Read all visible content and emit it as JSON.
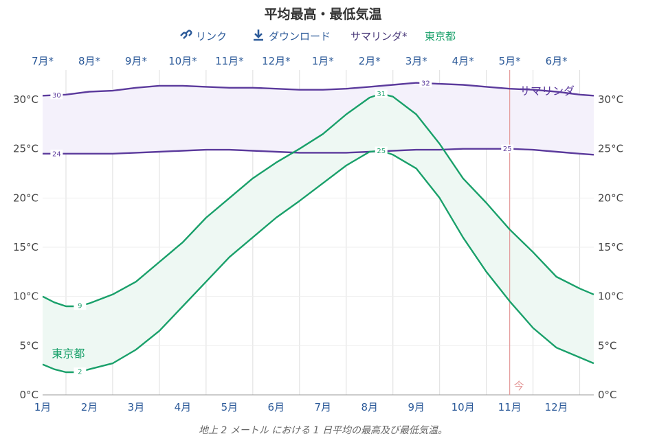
{
  "chart_data": {
    "type": "line",
    "title": "平均最高・最低気温",
    "caption": "地上 2 メートル における 1 日平均の最高及び最低気温。",
    "legend": {
      "link": "リンク",
      "download": "ダウンロード",
      "series_a": "サマリンダ*",
      "series_b": "東京都"
    },
    "top_axis_labels": [
      "7月*",
      "8月*",
      "9月*",
      "10月*",
      "11月*",
      "12月*",
      "1月*",
      "2月*",
      "3月*",
      "4月*",
      "5月*",
      "6月*"
    ],
    "bottom_axis_labels": [
      "1月",
      "2月",
      "3月",
      "4月",
      "5月",
      "6月",
      "7月",
      "8月",
      "9月",
      "10月",
      "11月",
      "12月"
    ],
    "y_ticks": [
      "0°C",
      "5°C",
      "10°C",
      "15°C",
      "20°C",
      "25°C",
      "30°C"
    ],
    "ylim": [
      0,
      33
    ],
    "xlim": [
      1,
      12.8
    ],
    "now_marker": {
      "label": "今",
      "x": 11.0
    },
    "series": [
      {
        "name": "サマリンダ",
        "kind": "high",
        "points": [
          [
            1,
            30.4
          ],
          [
            1.5,
            30.5
          ],
          [
            2,
            30.8
          ],
          [
            2.5,
            30.9
          ],
          [
            3,
            31.2
          ],
          [
            3.5,
            31.4
          ],
          [
            4,
            31.4
          ],
          [
            4.5,
            31.3
          ],
          [
            5,
            31.2
          ],
          [
            5.5,
            31.2
          ],
          [
            6,
            31.1
          ],
          [
            6.5,
            31.0
          ],
          [
            7,
            31.0
          ],
          [
            7.5,
            31.1
          ],
          [
            8,
            31.3
          ],
          [
            8.5,
            31.5
          ],
          [
            9,
            31.7
          ],
          [
            9.5,
            31.6
          ],
          [
            10,
            31.5
          ],
          [
            10.5,
            31.3
          ],
          [
            11,
            31.1
          ],
          [
            11.5,
            31.0
          ],
          [
            12,
            30.8
          ],
          [
            12.5,
            30.5
          ],
          [
            12.8,
            30.4
          ]
        ],
        "labels": [
          {
            "x": 1.3,
            "text": "30"
          },
          {
            "x": 9.2,
            "text": "32"
          }
        ],
        "color": "#5b3a9c"
      },
      {
        "name": "サマリンダ",
        "kind": "low",
        "points": [
          [
            1,
            24.5
          ],
          [
            1.5,
            24.5
          ],
          [
            2,
            24.5
          ],
          [
            2.5,
            24.5
          ],
          [
            3,
            24.6
          ],
          [
            3.5,
            24.7
          ],
          [
            4,
            24.8
          ],
          [
            4.5,
            24.9
          ],
          [
            5,
            24.9
          ],
          [
            5.5,
            24.8
          ],
          [
            6,
            24.7
          ],
          [
            6.5,
            24.6
          ],
          [
            7,
            24.6
          ],
          [
            7.5,
            24.6
          ],
          [
            8,
            24.7
          ],
          [
            8.5,
            24.8
          ],
          [
            9,
            24.9
          ],
          [
            9.5,
            24.9
          ],
          [
            10,
            25.0
          ],
          [
            10.5,
            25.0
          ],
          [
            11,
            25.0
          ],
          [
            11.5,
            24.9
          ],
          [
            12,
            24.7
          ],
          [
            12.5,
            24.5
          ],
          [
            12.8,
            24.4
          ]
        ],
        "labels": [
          {
            "x": 1.3,
            "text": "24"
          },
          {
            "x": 10.95,
            "text": "25"
          }
        ],
        "color": "#5b3a9c"
      },
      {
        "name": "東京都",
        "kind": "high",
        "points": [
          [
            1,
            10.0
          ],
          [
            1.25,
            9.4
          ],
          [
            1.5,
            9.0
          ],
          [
            1.75,
            9.0
          ],
          [
            2,
            9.3
          ],
          [
            2.5,
            10.2
          ],
          [
            3,
            11.5
          ],
          [
            3.5,
            13.5
          ],
          [
            4,
            15.5
          ],
          [
            4.5,
            18.0
          ],
          [
            5,
            20.0
          ],
          [
            5.5,
            22.0
          ],
          [
            6,
            23.6
          ],
          [
            6.5,
            25.0
          ],
          [
            7,
            26.5
          ],
          [
            7.5,
            28.5
          ],
          [
            8,
            30.2
          ],
          [
            8.25,
            30.6
          ],
          [
            8.5,
            30.3
          ],
          [
            9,
            28.5
          ],
          [
            9.5,
            25.5
          ],
          [
            10,
            22.0
          ],
          [
            10.5,
            19.5
          ],
          [
            11,
            16.8
          ],
          [
            11.5,
            14.5
          ],
          [
            12,
            12.0
          ],
          [
            12.5,
            10.8
          ],
          [
            12.8,
            10.2
          ]
        ],
        "labels": [
          {
            "x": 1.8,
            "text": "9"
          },
          {
            "x": 8.25,
            "text": "31"
          }
        ],
        "color": "#19a06a"
      },
      {
        "name": "東京都",
        "kind": "low",
        "points": [
          [
            1,
            3.1
          ],
          [
            1.25,
            2.6
          ],
          [
            1.5,
            2.3
          ],
          [
            1.75,
            2.3
          ],
          [
            2,
            2.6
          ],
          [
            2.5,
            3.2
          ],
          [
            3,
            4.6
          ],
          [
            3.5,
            6.5
          ],
          [
            4,
            9.0
          ],
          [
            4.5,
            11.5
          ],
          [
            5,
            14.0
          ],
          [
            5.5,
            16.0
          ],
          [
            6,
            18.0
          ],
          [
            6.5,
            19.7
          ],
          [
            7,
            21.5
          ],
          [
            7.5,
            23.3
          ],
          [
            8,
            24.7
          ],
          [
            8.25,
            24.8
          ],
          [
            8.5,
            24.4
          ],
          [
            9,
            23.0
          ],
          [
            9.5,
            20.0
          ],
          [
            10,
            16.0
          ],
          [
            10.5,
            12.5
          ],
          [
            11,
            9.5
          ],
          [
            11.5,
            6.8
          ],
          [
            12,
            4.8
          ],
          [
            12.5,
            3.8
          ],
          [
            12.8,
            3.2
          ]
        ],
        "labels": [
          {
            "x": 1.8,
            "text": "2"
          },
          {
            "x": 8.25,
            "text": "25"
          }
        ],
        "color": "#19a06a"
      }
    ],
    "series_labels": [
      {
        "text": "サマリンダ",
        "x": 11.8,
        "y": 30.5,
        "color": "#5b3a9c"
      },
      {
        "text": "東京都",
        "x": 1.55,
        "y": 3.8,
        "color": "#19a06a"
      }
    ],
    "colors": {
      "purple": "#5b3a9c",
      "purple_fill": "#f4f1fb",
      "green": "#19a06a",
      "green_fill": "#eef8f3",
      "grid": "#dddddd",
      "now_line": "#e49a9a"
    }
  }
}
